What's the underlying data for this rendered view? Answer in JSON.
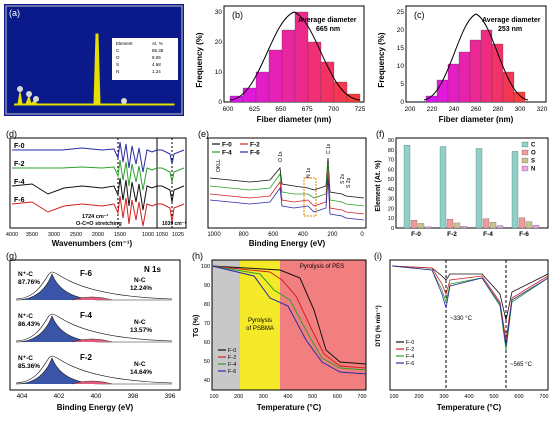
{
  "panels": {
    "a": {
      "label": "(a)",
      "table_headers": [
        "Element",
        "At. %"
      ],
      "table_rows": [
        [
          "C",
          "85.38"
        ],
        [
          "O",
          "8.06"
        ],
        [
          "S",
          "4.68"
        ],
        [
          "N",
          "1.24"
        ]
      ]
    },
    "b": {
      "label": "(b)",
      "ylabel": "Frequency (%)",
      "xlabel": "Fiber diameter (nm)",
      "annotation": "Average diameter",
      "annotation_value": "665 nm",
      "x_ticks": [
        "600",
        "625",
        "650",
        "675",
        "700",
        "725"
      ],
      "y_ticks": [
        "0",
        "10",
        "20",
        "30"
      ]
    },
    "c": {
      "label": "(c)",
      "ylabel": "Frequency (%)",
      "xlabel": "Fiber diameter (nm)",
      "annotation": "Average diameter",
      "annotation_value": "253 nm",
      "x_ticks": [
        "200",
        "220",
        "240",
        "260",
        "280",
        "300",
        "320"
      ],
      "y_ticks": [
        "0",
        "5",
        "10",
        "15",
        "20",
        "25"
      ]
    },
    "d": {
      "label": "(d)",
      "xlabel": "Wavenumbers (cm⁻¹)",
      "x_ticks": [
        "4000",
        "3500",
        "3000",
        "2500",
        "2000",
        "1500",
        "1000",
        "1050",
        "1025"
      ],
      "series_labels": [
        "F-0",
        "F-2",
        "F-4",
        "F-6"
      ],
      "annotation1": "1724 cm⁻¹",
      "annotation2": "O-C=O stretching",
      "annotation3": "1039 cm⁻¹"
    },
    "e": {
      "label": "(e)",
      "xlabel": "Binding Energy (eV)",
      "legend": [
        "F-0",
        "F-2",
        "F-4",
        "F-6"
      ],
      "x_ticks": [
        "1000",
        "800",
        "600",
        "400",
        "200",
        "0"
      ],
      "peaks": [
        "OKLL",
        "O 1s",
        "N 1s",
        "C 1s",
        "S 2s",
        "S 2p"
      ]
    },
    "f": {
      "label": "(f)",
      "ylabel": "Element (At. %)",
      "categories": [
        "F-0",
        "F-2",
        "F-4",
        "F-6"
      ],
      "y_ticks": [
        "0",
        "10",
        "20",
        "30",
        "40",
        "50",
        "60",
        "70",
        "80",
        "90"
      ],
      "legend": [
        "C",
        "O",
        "S",
        "N"
      ]
    },
    "g": {
      "label": "(g)",
      "title": "N 1s",
      "xlabel": "Binding Energy (eV)",
      "x_ticks": [
        "404",
        "402",
        "400",
        "398",
        "396"
      ],
      "rows": [
        {
          "name": "F-6",
          "np": "N⁺-C",
          "np_val": "87.76%",
          "nc": "N-C",
          "nc_val": "12.24%"
        },
        {
          "name": "F-4",
          "np": "N⁺-C",
          "np_val": "86.43%",
          "nc": "N-C",
          "nc_val": "13.57%"
        },
        {
          "name": "F-2",
          "np": "N⁺-C",
          "np_val": "85.36%",
          "nc": "N-C",
          "nc_val": "14.64%"
        }
      ]
    },
    "h": {
      "label": "(h)",
      "ylabel": "TG (%)",
      "xlabel": "Temperature (°C)",
      "region1": "Pyrolysis",
      "region1b": "of PSBMA",
      "region2": "Pyrolysis of PES",
      "legend": [
        "F-0",
        "F-2",
        "F-4",
        "F-6"
      ],
      "x_ticks": [
        "100",
        "200",
        "300",
        "400",
        "500",
        "600",
        "700"
      ],
      "y_ticks": [
        "40",
        "50",
        "60",
        "70",
        "80",
        "90",
        "100"
      ]
    },
    "i": {
      "label": "(i)",
      "ylabel": "DTG (% min⁻¹)",
      "xlabel": "Temperature (°C)",
      "legend": [
        "F-0",
        "F-2",
        "F-4",
        "F-6"
      ],
      "ann1": "~330 °C",
      "ann2": "~565 °C",
      "x_ticks": [
        "100",
        "200",
        "300",
        "400",
        "500",
        "600",
        "700"
      ]
    }
  },
  "colors": {
    "F0": "#111111",
    "F2": "#d32020",
    "F4": "#2ca02c",
    "F6": "#2a2aa8"
  }
}
